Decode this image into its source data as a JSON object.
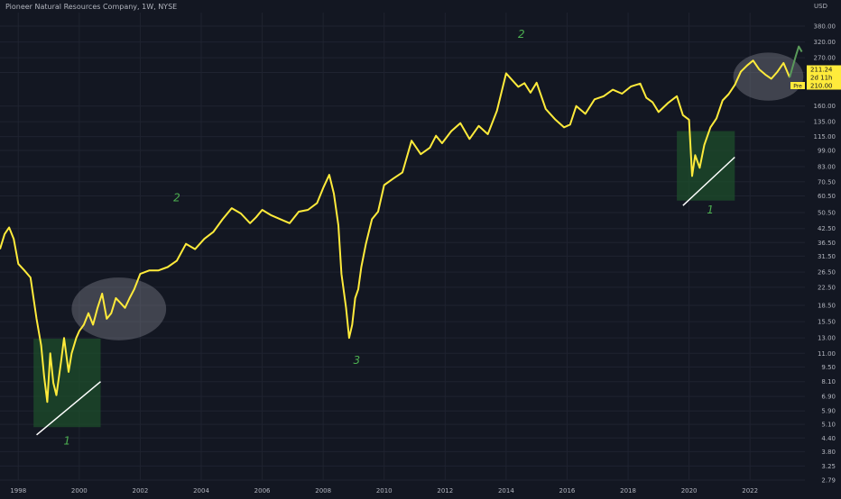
{
  "header": {
    "symbol_line": "Pioneer Natural Resources Company, 1W, NYSE",
    "currency": "USD"
  },
  "colors": {
    "background": "#131722",
    "grid": "#1f2330",
    "price_line": "#ffeb3b",
    "recent_line": "#5a9a5a",
    "annotation_text": "#4caf50",
    "box_fill": "#1e4d2b",
    "circle_fill": "#787b86",
    "axis_text": "#b2b5be",
    "trendline": "#ffffff"
  },
  "chart_data": {
    "type": "line",
    "y_scale": "log",
    "ylim": [
      2.79,
      440
    ],
    "xlim": [
      1997.4,
      2023.8
    ],
    "y_ticks": [
      "380.00",
      "320.00",
      "270.00",
      "230.00",
      "160.00",
      "135.00",
      "115.00",
      "99.00",
      "83.00",
      "70.50",
      "60.50",
      "50.50",
      "42.50",
      "36.50",
      "31.50",
      "26.50",
      "22.50",
      "18.50",
      "15.50",
      "13.00",
      "11.00",
      "9.50",
      "8.10",
      "6.90",
      "5.90",
      "5.10",
      "4.40",
      "3.80",
      "3.25",
      "2.79"
    ],
    "x_ticks": [
      "1998",
      "2000",
      "2002",
      "2004",
      "2006",
      "2008",
      "2010",
      "2012",
      "2014",
      "2016",
      "2018",
      "2020",
      "2022"
    ],
    "price_labels": [
      {
        "text": "211.24",
        "style": "price"
      },
      {
        "text": "2d 11h",
        "style": "countdown"
      },
      {
        "text": "210.00",
        "style": "alert",
        "tag": "Pre"
      }
    ],
    "annotations": [
      {
        "text": "1",
        "x": 1999.6,
        "y": 4.1
      },
      {
        "text": "2",
        "x": 2003.2,
        "y": 57
      },
      {
        "text": "3",
        "x": 2009.1,
        "y": 9.8
      },
      {
        "text": "2",
        "x": 2014.5,
        "y": 335
      },
      {
        "text": "1",
        "x": 2020.7,
        "y": 50
      }
    ],
    "boxes": [
      {
        "x0": 1998.5,
        "x1": 2000.7,
        "y0": 4.95,
        "y1": 12.9
      },
      {
        "x0": 2019.6,
        "x1": 2021.5,
        "y0": 57.5,
        "y1": 122
      }
    ],
    "ellipses": [
      {
        "cx": 2001.3,
        "cy": 17.8,
        "rx_years": 1.55,
        "ry_log": 0.34
      },
      {
        "cx": 2022.6,
        "cy": 220,
        "rx_years": 1.15,
        "ry_log": 0.26
      }
    ],
    "trendlines": [
      {
        "x0": 1998.6,
        "y0": 4.55,
        "x1": 2000.7,
        "y1": 8.1
      },
      {
        "x0": 2019.8,
        "y0": 54.5,
        "x1": 2021.5,
        "y1": 92
      }
    ],
    "series": [
      {
        "x": [
          1997.4,
          1997.55,
          1997.7,
          1997.85,
          1998.0,
          1998.2,
          1998.4,
          1998.6,
          1998.75,
          1998.85,
          1998.95,
          1999.05,
          1999.15,
          1999.25,
          1999.4,
          1999.5,
          1999.65,
          1999.75,
          1999.9,
          2000.0,
          2000.15,
          2000.3,
          2000.45,
          2000.6,
          2000.75,
          2000.9,
          2001.05,
          2001.2,
          2001.35,
          2001.5,
          2001.65,
          2001.8,
          2002.0,
          2002.3,
          2002.6,
          2002.9,
          2003.2,
          2003.5,
          2003.8,
          2004.1,
          2004.4,
          2004.7,
          2005.0,
          2005.3,
          2005.6,
          2005.8,
          2006.0,
          2006.3,
          2006.6,
          2006.9,
          2007.2,
          2007.5,
          2007.8,
          2008.0,
          2008.2,
          2008.35,
          2008.5,
          2008.6,
          2008.75,
          2008.85,
          2008.95,
          2009.05,
          2009.15,
          2009.25,
          2009.4,
          2009.6,
          2009.8,
          2010.0,
          2010.3,
          2010.6,
          2010.9,
          2011.2,
          2011.5,
          2011.7,
          2011.9,
          2012.2,
          2012.5,
          2012.8,
          2013.1,
          2013.4,
          2013.7,
          2014.0,
          2014.2,
          2014.4,
          2014.6,
          2014.8,
          2015.0,
          2015.3,
          2015.6,
          2015.9,
          2016.1,
          2016.3,
          2016.6,
          2016.9,
          2017.2,
          2017.5,
          2017.8,
          2018.1,
          2018.4,
          2018.6,
          2018.8,
          2019.0,
          2019.3,
          2019.6,
          2019.8,
          2020.0,
          2020.1,
          2020.2,
          2020.35,
          2020.5,
          2020.7,
          2020.9,
          2021.1,
          2021.3,
          2021.5,
          2021.7,
          2021.9,
          2022.1,
          2022.3,
          2022.5,
          2022.7,
          2022.9,
          2023.1,
          2023.3
        ],
        "y": [
          34,
          40,
          43,
          38,
          29,
          27,
          25,
          16,
          12,
          8.5,
          6.5,
          11,
          8,
          7,
          10,
          13,
          9,
          11,
          13,
          14,
          15,
          17,
          15,
          18,
          21,
          16,
          17,
          20,
          19,
          18,
          20,
          22,
          26,
          27,
          27,
          28,
          30,
          36,
          34,
          38,
          41,
          47,
          53,
          50,
          45,
          48,
          52,
          49,
          47,
          45,
          51,
          52,
          56,
          66,
          76,
          62,
          44,
          26,
          18,
          13,
          15,
          20,
          22,
          28,
          36,
          47,
          51,
          68,
          73,
          78,
          110,
          95,
          102,
          116,
          107,
          122,
          133,
          112,
          129,
          118,
          152,
          228,
          212,
          197,
          205,
          185,
          206,
          155,
          139,
          127,
          131,
          160,
          147,
          172,
          178,
          191,
          183,
          198,
          204,
          175,
          167,
          150,
          165,
          178,
          145,
          138,
          75,
          94,
          82,
          105,
          127,
          140,
          170,
          182,
          201,
          232,
          248,
          262,
          238,
          225,
          215,
          232,
          255,
          218
        ],
        "color_key": "price_line"
      },
      {
        "x": [
          2023.3,
          2023.4,
          2023.5,
          2023.6,
          2023.7
        ],
        "y": [
          218,
          245,
          275,
          305,
          288
        ],
        "color_key": "recent_line"
      }
    ]
  }
}
